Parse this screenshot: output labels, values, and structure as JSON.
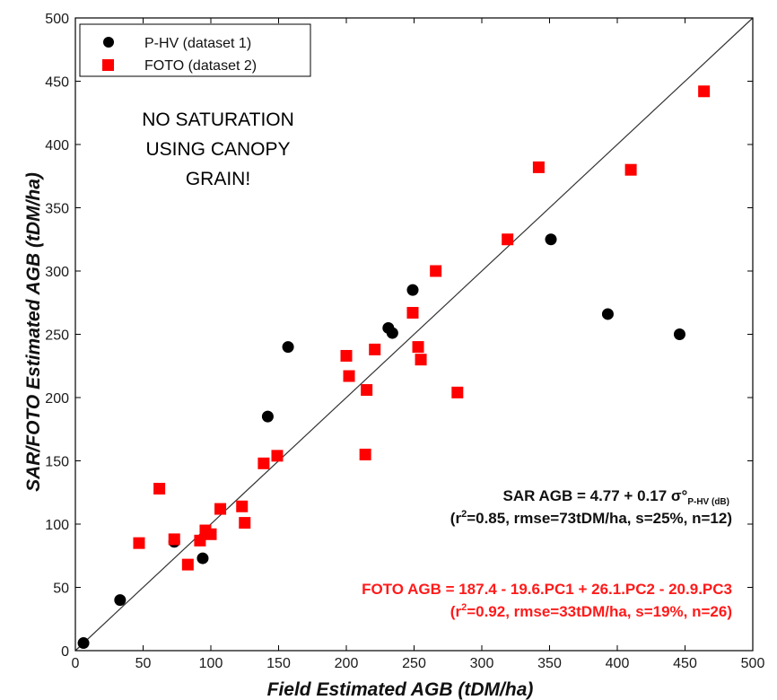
{
  "chart_data": {
    "type": "scatter",
    "xlabel": "Field Estimated AGB (tDM/ha)",
    "ylabel": "SAR/FOTO Estimated AGB (tDM/ha)",
    "xlim": [
      0,
      500
    ],
    "ylim": [
      0,
      500
    ],
    "x_ticks": [
      "0",
      "50",
      "100",
      "150",
      "200",
      "250",
      "300",
      "350",
      "400",
      "450",
      "500"
    ],
    "y_ticks": [
      "0",
      "50",
      "100",
      "150",
      "200",
      "250",
      "300",
      "350",
      "400",
      "450",
      "500"
    ],
    "grid": false,
    "legend_placement": "top-left",
    "reference_line": "1:1",
    "series": [
      {
        "name": "P-HV (dataset 1)",
        "marker": "circle",
        "color": "#000000",
        "points": [
          [
            6,
            6
          ],
          [
            33,
            40
          ],
          [
            73,
            86
          ],
          [
            94,
            73
          ],
          [
            142,
            185
          ],
          [
            157,
            240
          ],
          [
            231,
            255
          ],
          [
            234,
            251
          ],
          [
            249,
            285
          ],
          [
            351,
            325
          ],
          [
            393,
            266
          ],
          [
            446,
            250
          ]
        ]
      },
      {
        "name": "FOTO (dataset 2)",
        "marker": "square",
        "color": "#ff0000",
        "points": [
          [
            47,
            85
          ],
          [
            62,
            128
          ],
          [
            73,
            88
          ],
          [
            83,
            68
          ],
          [
            92,
            87
          ],
          [
            96,
            95
          ],
          [
            100,
            92
          ],
          [
            107,
            112
          ],
          [
            123,
            114
          ],
          [
            125,
            101
          ],
          [
            139,
            148
          ],
          [
            149,
            154
          ],
          [
            200,
            233
          ],
          [
            202,
            217
          ],
          [
            215,
            206
          ],
          [
            214,
            155
          ],
          [
            221,
            238
          ],
          [
            249,
            267
          ],
          [
            253,
            240
          ],
          [
            255,
            230
          ],
          [
            266,
            300
          ],
          [
            282,
            204
          ],
          [
            319,
            325
          ],
          [
            342,
            382
          ],
          [
            410,
            380
          ],
          [
            464,
            442
          ]
        ]
      }
    ]
  },
  "annotation": {
    "lines": [
      "NO SATURATION",
      "USING CANOPY",
      "GRAIN!"
    ]
  },
  "equations": {
    "sar": {
      "prefix": "SAR AGB = 4.77 + 0.17 σ°",
      "subscript": "P-HV (dB)",
      "stats_open": "(r",
      "stats_sup": "2",
      "stats_rest": "=0.85, rmse=73tDM/ha, s=25%, n=12)",
      "color": "#111111"
    },
    "foto": {
      "line": "FOTO AGB = 187.4 - 19.6.PC1 + 26.1.PC2 - 20.9.PC3",
      "stats_open": "(r",
      "stats_sup": "2",
      "stats_rest": "=0.92, rmse=33tDM/ha, s=19%, n=26)",
      "color": "#ff1a1a"
    }
  }
}
